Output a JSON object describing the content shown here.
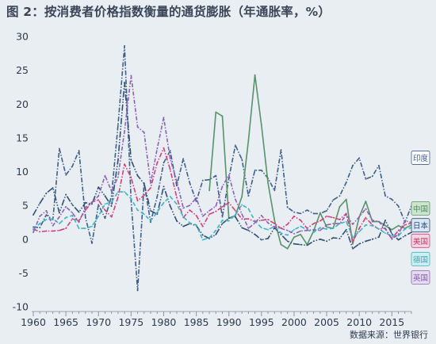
{
  "chart_data": {
    "type": "line",
    "title": "图 2：按消费者价格指数衡量的通货膨胀（年通胀率，%）",
    "source": "数据来源：世界银行",
    "xlabel": "",
    "ylabel": "",
    "xlim": [
      1960,
      2018
    ],
    "ylim": [
      -10,
      30
    ],
    "x_ticks": [
      1960,
      1965,
      1970,
      1975,
      1980,
      1985,
      1990,
      1995,
      2000,
      2005,
      2010,
      2015
    ],
    "y_ticks": [
      -10,
      -5,
      0,
      5,
      10,
      15,
      20,
      25,
      30
    ],
    "grid": false,
    "legend_placement": "right",
    "series": [
      {
        "name": "印度",
        "color": "#3e5f8a",
        "dash": "6 2 1.5 2",
        "legend_y": 12,
        "legend_bg": "#ffffff",
        "legend_fg": "#3e5f8a",
        "x": [
          1960,
          1961,
          1962,
          1963,
          1964,
          1965,
          1966,
          1967,
          1968,
          1969,
          1970,
          1971,
          1972,
          1973,
          1974,
          1975,
          1976,
          1977,
          1978,
          1979,
          1980,
          1981,
          1982,
          1983,
          1984,
          1985,
          1986,
          1987,
          1988,
          1989,
          1990,
          1991,
          1992,
          1993,
          1994,
          1995,
          1996,
          1997,
          1998,
          1999,
          2000,
          2001,
          2002,
          2003,
          2004,
          2005,
          2006,
          2007,
          2008,
          2009,
          2010,
          2011,
          2012,
          2013,
          2014,
          2015,
          2016,
          2017,
          2018
        ],
        "y": [
          1.8,
          1.7,
          3.6,
          2.9,
          13.4,
          9.5,
          10.8,
          13.1,
          3.2,
          -0.6,
          5.1,
          3.1,
          6.4,
          16.9,
          28.6,
          5.7,
          -7.6,
          8.3,
          2.5,
          6.3,
          11.3,
          13.1,
          7.9,
          11.9,
          8.3,
          5.6,
          8.7,
          8.8,
          9.4,
          3.3,
          9.0,
          13.9,
          11.8,
          6.4,
          10.2,
          10.2,
          9.0,
          7.2,
          13.2,
          4.7,
          4.0,
          3.8,
          4.3,
          3.8,
          3.8,
          4.2,
          5.8,
          6.4,
          8.4,
          10.9,
          12.0,
          8.9,
          9.3,
          10.9,
          6.4,
          5.9,
          4.9,
          2.5,
          4.9
        ]
      },
      {
        "name": "中国",
        "color": "#58916a",
        "dash": "",
        "legend_y": 4.5,
        "legend_bg": "#cfe4cf",
        "legend_fg": "#4f8a5f",
        "x": [
          1987,
          1988,
          1989,
          1990,
          1991,
          1992,
          1993,
          1994,
          1995,
          1996,
          1997,
          1998,
          1999,
          2000,
          2001,
          2002,
          2003,
          2004,
          2005,
          2006,
          2007,
          2008,
          2009,
          2010,
          2011,
          2012,
          2013,
          2014,
          2015,
          2016,
          2017,
          2018
        ],
        "y": [
          7.2,
          18.8,
          18.2,
          3.1,
          3.5,
          6.3,
          14.6,
          24.3,
          16.9,
          8.3,
          2.8,
          -0.8,
          -1.4,
          0.3,
          0.7,
          -0.8,
          1.2,
          3.9,
          1.8,
          1.6,
          4.8,
          5.9,
          -0.7,
          3.3,
          5.6,
          2.6,
          2.6,
          2.0,
          1.4,
          2.0,
          1.6,
          2.1
        ]
      },
      {
        "name": "日本",
        "color": "#2f4f72",
        "dash": "8 2 1.5 2 1.5 2",
        "legend_y": 2.0,
        "legend_bg": "#d9e6f4",
        "legend_fg": "#2f4f72",
        "x": [
          1960,
          1961,
          1962,
          1963,
          1964,
          1965,
          1966,
          1967,
          1968,
          1969,
          1970,
          1971,
          1972,
          1973,
          1974,
          1975,
          1976,
          1977,
          1978,
          1979,
          1980,
          1981,
          1982,
          1983,
          1984,
          1985,
          1986,
          1987,
          1988,
          1989,
          1990,
          1991,
          1992,
          1993,
          1994,
          1995,
          1996,
          1997,
          1998,
          1999,
          2000,
          2001,
          2002,
          2003,
          2004,
          2005,
          2006,
          2007,
          2008,
          2009,
          2010,
          2011,
          2012,
          2013,
          2014,
          2015,
          2016,
          2017,
          2018
        ],
        "y": [
          3.6,
          5.3,
          6.8,
          7.6,
          3.9,
          6.6,
          5.1,
          4.0,
          5.4,
          5.2,
          7.7,
          6.4,
          4.9,
          11.7,
          23.2,
          11.7,
          9.4,
          8.2,
          4.2,
          3.7,
          7.8,
          4.9,
          2.7,
          1.9,
          2.3,
          2.0,
          0.6,
          0.1,
          0.7,
          2.3,
          3.1,
          3.3,
          1.7,
          1.3,
          0.7,
          -0.1,
          0.1,
          1.7,
          0.7,
          -0.3,
          -0.7,
          -0.8,
          -0.9,
          -0.3,
          0.0,
          -0.3,
          0.2,
          0.1,
          1.4,
          -1.4,
          -0.7,
          -0.3,
          0.0,
          0.3,
          2.8,
          0.8,
          -0.1,
          0.5,
          1.0
        ]
      },
      {
        "name": "美国",
        "color": "#d0417a",
        "dash": "6 2 1.5 2",
        "legend_y": -0.3,
        "legend_bg": "#f6d6e2",
        "legend_fg": "#c03a6e",
        "x": [
          1960,
          1961,
          1962,
          1963,
          1964,
          1965,
          1966,
          1967,
          1968,
          1969,
          1970,
          1971,
          1972,
          1973,
          1974,
          1975,
          1976,
          1977,
          1978,
          1979,
          1980,
          1981,
          1982,
          1983,
          1984,
          1985,
          1986,
          1987,
          1988,
          1989,
          1990,
          1991,
          1992,
          1993,
          1994,
          1995,
          1996,
          1997,
          1998,
          1999,
          2000,
          2001,
          2002,
          2003,
          2004,
          2005,
          2006,
          2007,
          2008,
          2009,
          2010,
          2011,
          2012,
          2013,
          2014,
          2015,
          2016,
          2017,
          2018
        ],
        "y": [
          1.5,
          1.1,
          1.2,
          1.2,
          1.3,
          1.6,
          3.0,
          2.8,
          4.3,
          5.5,
          5.8,
          4.3,
          3.3,
          6.2,
          11.1,
          9.1,
          5.7,
          6.5,
          7.6,
          11.3,
          13.5,
          10.3,
          6.2,
          3.2,
          4.3,
          3.5,
          1.9,
          3.7,
          4.1,
          4.8,
          5.4,
          4.2,
          3.0,
          3.0,
          2.6,
          2.8,
          2.9,
          2.3,
          1.6,
          2.2,
          3.4,
          2.8,
          1.6,
          2.3,
          2.7,
          3.4,
          3.2,
          2.9,
          3.8,
          -0.4,
          1.6,
          3.2,
          2.1,
          1.5,
          1.6,
          0.1,
          1.3,
          2.1,
          2.4
        ]
      },
      {
        "name": "德国",
        "color": "#3fb3c1",
        "dash": "5 3",
        "legend_y": -3.0,
        "legend_bg": "#d3eef1",
        "legend_fg": "#34a7b4",
        "x": [
          1960,
          1961,
          1962,
          1963,
          1964,
          1965,
          1966,
          1967,
          1968,
          1969,
          1970,
          1971,
          1972,
          1973,
          1974,
          1975,
          1976,
          1977,
          1978,
          1979,
          1980,
          1981,
          1982,
          1983,
          1984,
          1985,
          1986,
          1987,
          1988,
          1989,
          1990,
          1991,
          1992,
          1993,
          1994,
          1995,
          1996,
          1997,
          1998,
          1999,
          2000,
          2001,
          2002,
          2003,
          2004,
          2005,
          2006,
          2007,
          2008,
          2009,
          2010,
          2011,
          2012,
          2013,
          2014,
          2015,
          2016,
          2017,
          2018
        ],
        "y": [
          1.4,
          2.3,
          2.9,
          3.0,
          2.3,
          3.2,
          3.5,
          1.6,
          1.6,
          1.9,
          3.4,
          5.2,
          5.5,
          7.0,
          7.0,
          6.0,
          4.3,
          3.7,
          2.7,
          4.0,
          5.4,
          6.3,
          5.2,
          3.3,
          2.4,
          2.1,
          -0.1,
          0.2,
          1.3,
          2.8,
          2.7,
          3.6,
          5.1,
          4.5,
          2.7,
          1.7,
          1.4,
          1.9,
          0.9,
          0.6,
          1.4,
          1.9,
          1.4,
          1.0,
          1.7,
          1.5,
          1.6,
          2.3,
          2.6,
          0.3,
          1.1,
          2.1,
          2.0,
          1.5,
          0.9,
          0.5,
          0.5,
          1.5,
          1.7
        ]
      },
      {
        "name": "英国",
        "color": "#8c61b5",
        "dash": "5 2 1.5 2",
        "legend_y": -5.7,
        "legend_bg": "#e6dcf1",
        "legend_fg": "#8458b0",
        "x": [
          1960,
          1961,
          1962,
          1963,
          1964,
          1965,
          1966,
          1967,
          1968,
          1969,
          1970,
          1971,
          1972,
          1973,
          1974,
          1975,
          1976,
          1977,
          1978,
          1979,
          1980,
          1981,
          1982,
          1983,
          1984,
          1985,
          1986,
          1987,
          1988,
          1989,
          1990,
          1991,
          1992,
          1993,
          1994,
          1995,
          1996,
          1997,
          1998,
          1999,
          2000,
          2001,
          2002,
          2003,
          2004,
          2005,
          2006,
          2007,
          2008,
          2009,
          2010,
          2011,
          2012,
          2013,
          2014,
          2015,
          2016,
          2017,
          2018
        ],
        "y": [
          1.0,
          3.4,
          4.2,
          2.0,
          3.3,
          4.8,
          3.9,
          2.5,
          4.7,
          5.4,
          6.4,
          9.4,
          7.1,
          9.2,
          16.0,
          24.2,
          16.6,
          15.8,
          8.3,
          13.4,
          18.0,
          11.9,
          8.6,
          4.6,
          5.0,
          6.1,
          3.4,
          4.2,
          4.9,
          7.8,
          9.5,
          5.9,
          3.7,
          1.6,
          2.4,
          3.5,
          2.4,
          1.8,
          1.6,
          1.3,
          0.8,
          1.2,
          1.3,
          1.4,
          1.3,
          2.1,
          2.3,
          2.3,
          3.6,
          2.2,
          3.3,
          4.5,
          2.8,
          2.6,
          1.5,
          0.0,
          0.7,
          2.7,
          2.5
        ]
      }
    ]
  }
}
